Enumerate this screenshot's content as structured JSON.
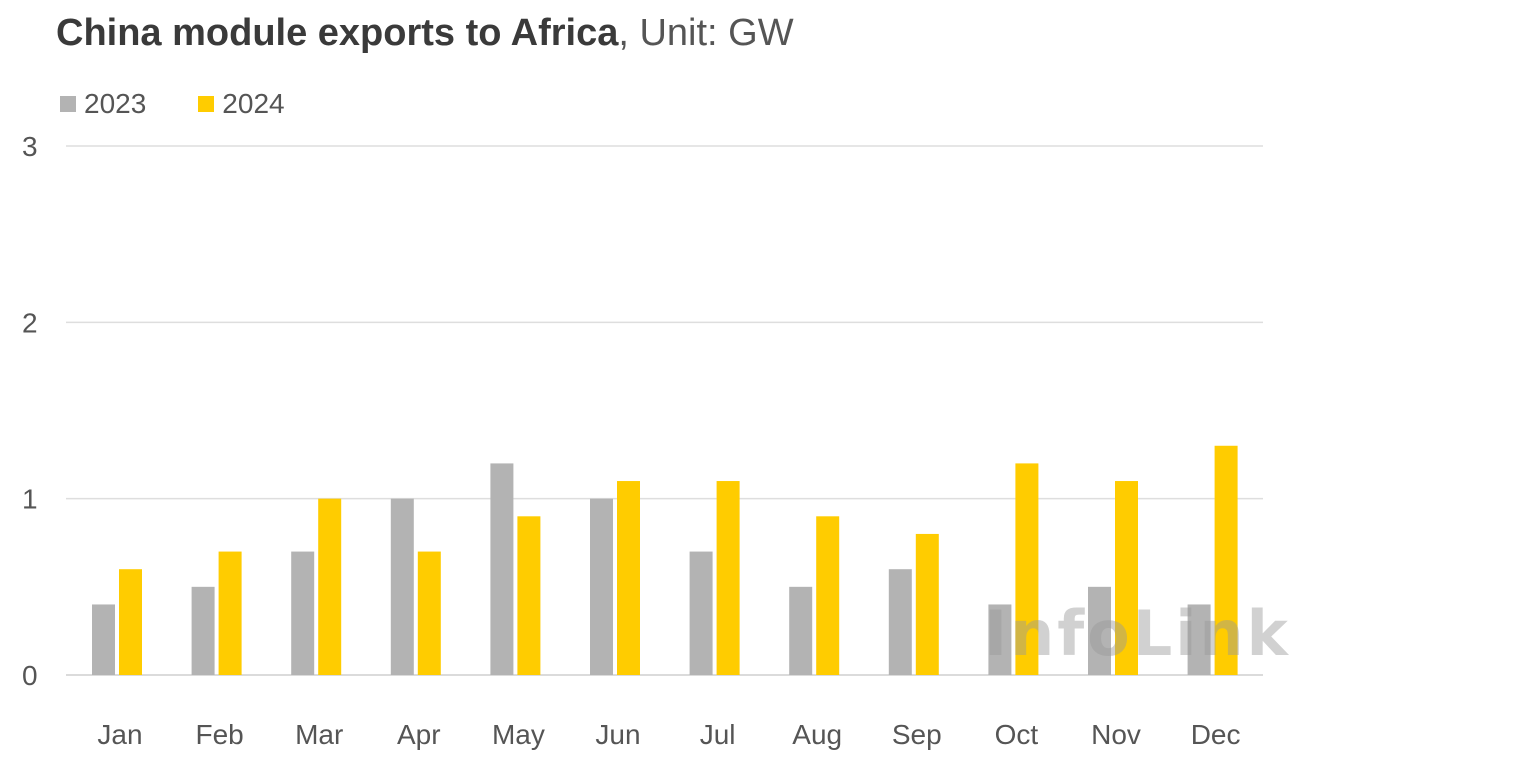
{
  "chart_data": {
    "type": "bar",
    "title": "China module exports to Africa",
    "title_unit": ", Unit: GW",
    "categories": [
      "Jan",
      "Feb",
      "Mar",
      "Apr",
      "May",
      "Jun",
      "Jul",
      "Aug",
      "Sep",
      "Oct",
      "Nov",
      "Dec"
    ],
    "series": [
      {
        "name": "2023",
        "color": "#b3b3b3",
        "values": [
          0.4,
          0.5,
          0.7,
          1.0,
          1.2,
          1.0,
          0.7,
          0.5,
          0.6,
          0.4,
          0.5,
          0.4
        ]
      },
      {
        "name": "2024",
        "color": "#ffcc00",
        "values": [
          0.6,
          0.7,
          1.0,
          0.7,
          0.9,
          1.1,
          1.1,
          0.9,
          0.8,
          1.2,
          1.1,
          1.3
        ]
      }
    ],
    "ylim": [
      0,
      3
    ],
    "yticks": [
      0,
      1,
      2,
      3
    ],
    "ytick_labels": [
      "0",
      "1",
      "2",
      "3"
    ],
    "grid": true,
    "legend_position": "top-left",
    "watermark": "InfoLink"
  }
}
